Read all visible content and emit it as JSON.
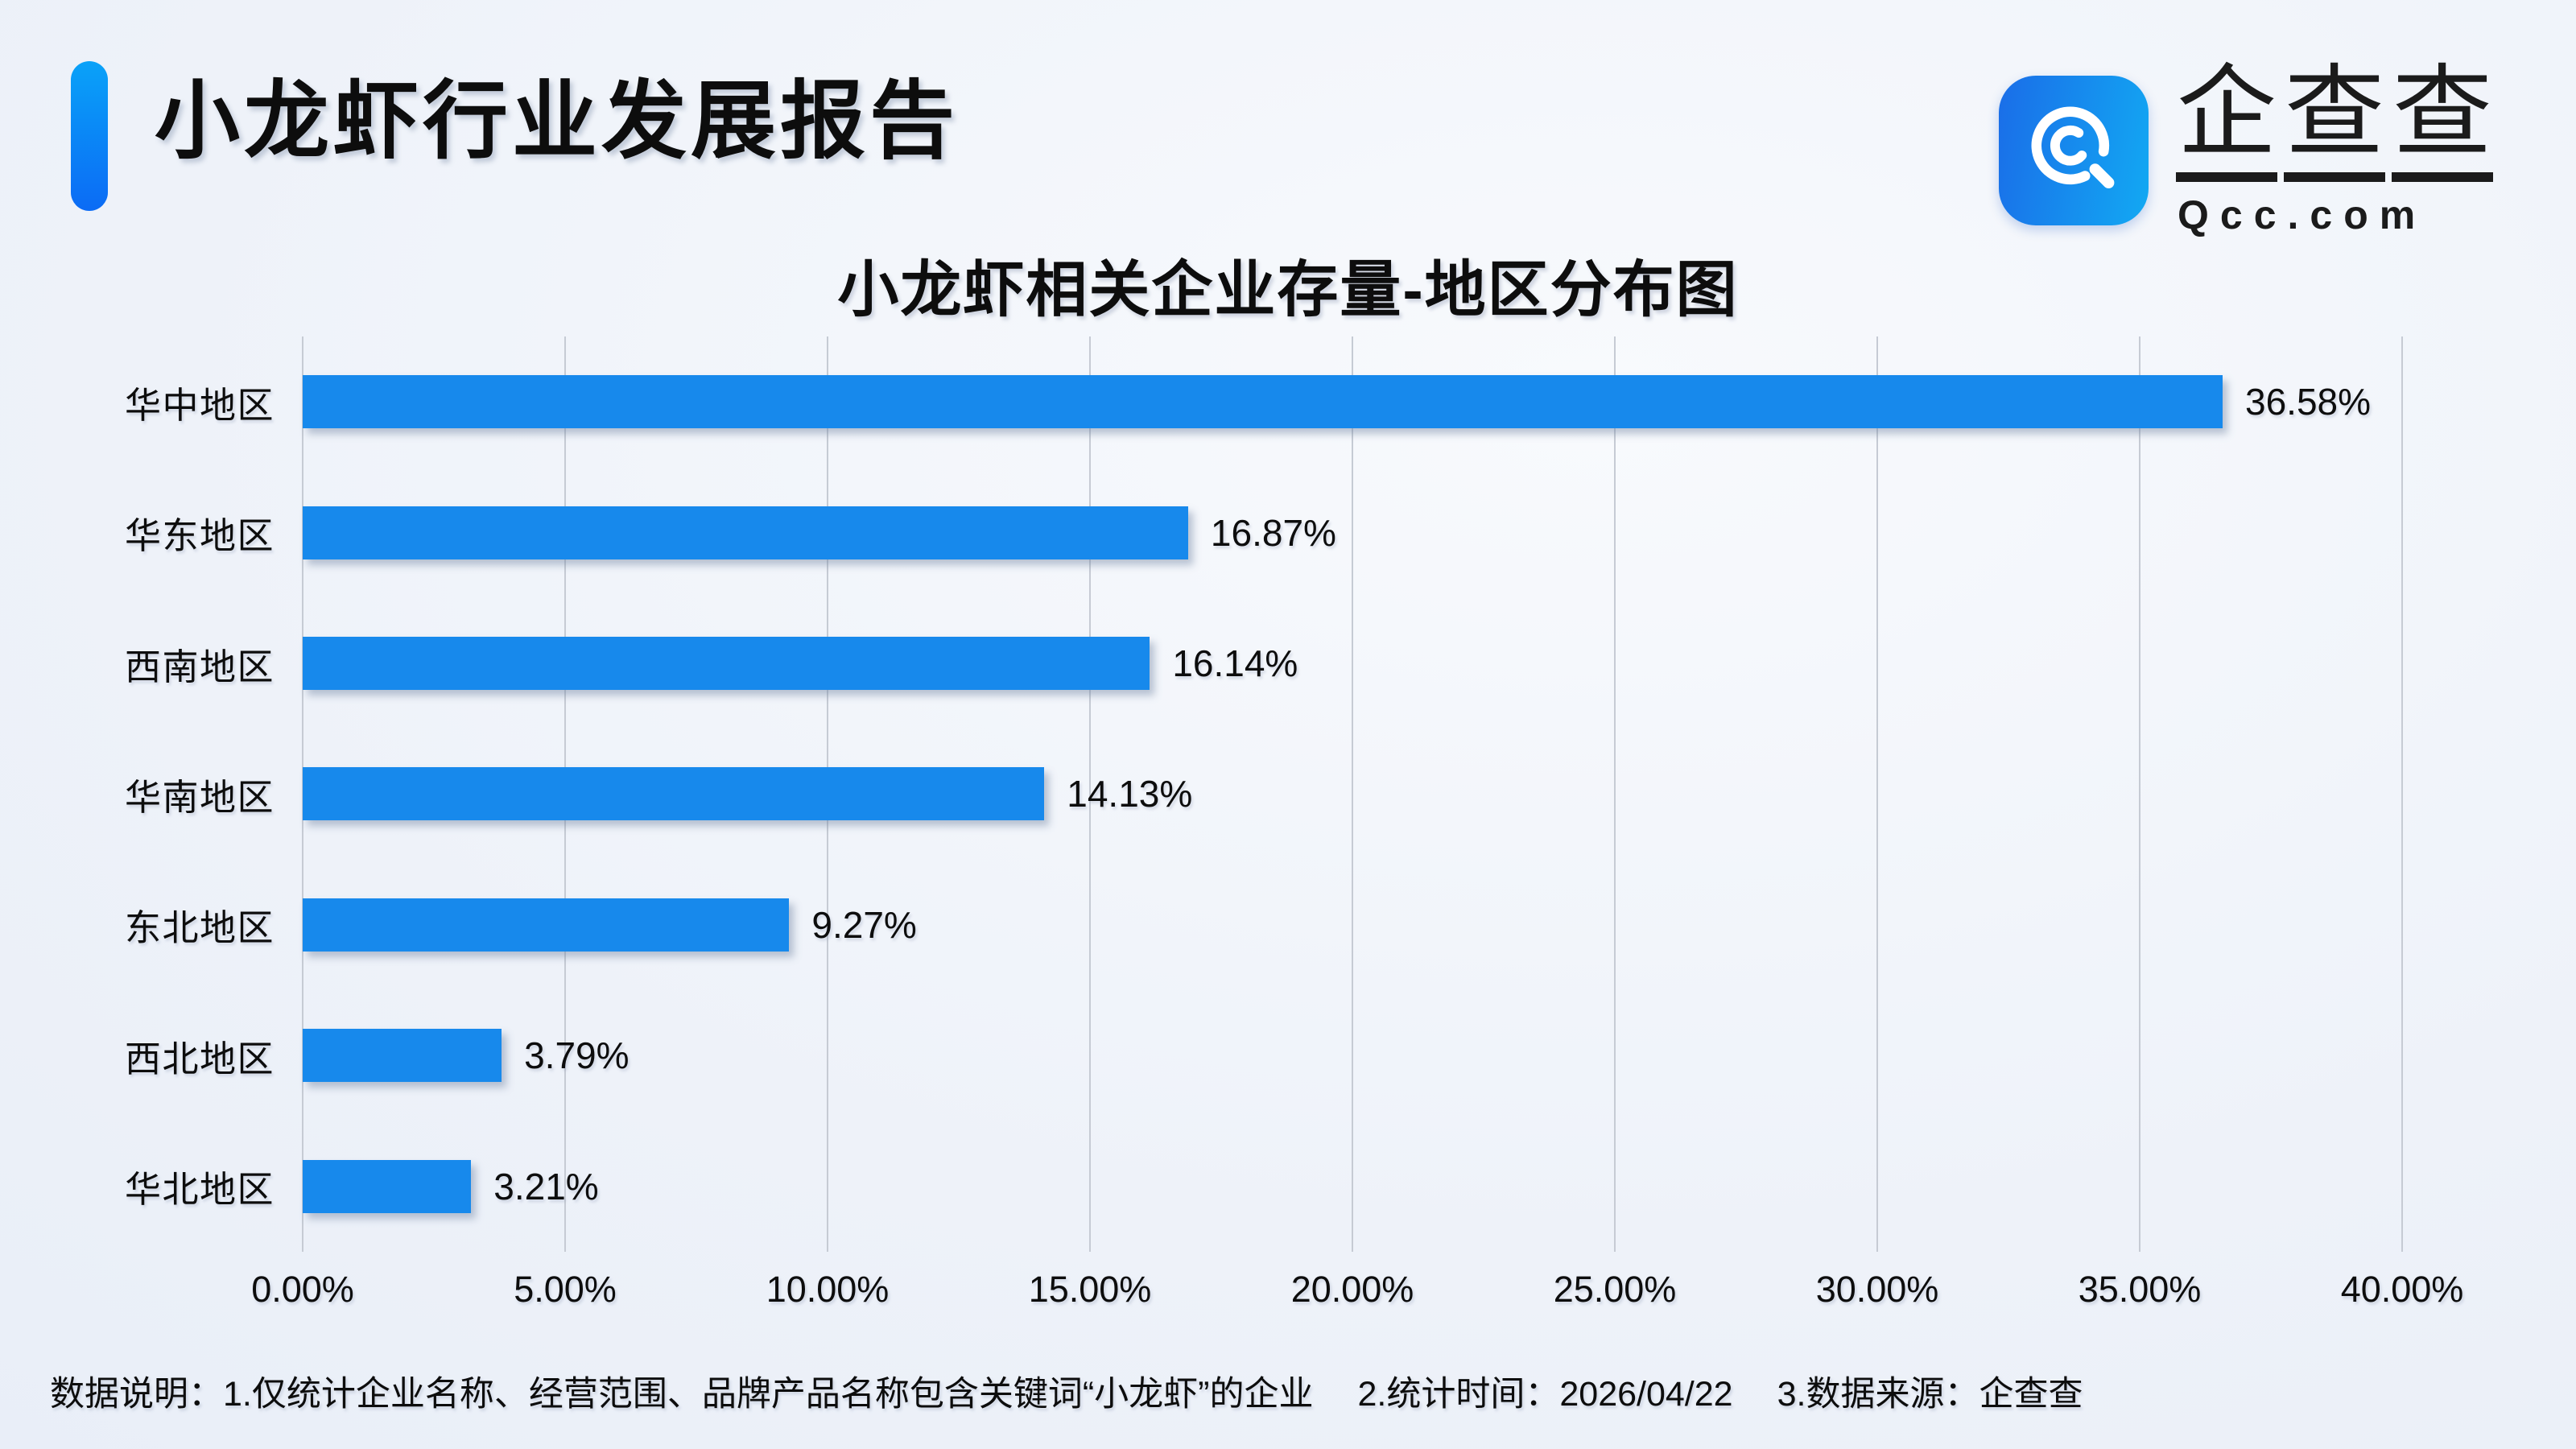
{
  "header": {
    "title": "小龙虾行业发展报告"
  },
  "logo": {
    "brand_chars": [
      "企",
      "查",
      "查"
    ],
    "domain": "Qcc.com",
    "icon": "qcc-magnifier-logo",
    "box_gradient": [
      "#1A6DE8",
      "#12A9F3"
    ]
  },
  "chart_data": {
    "type": "bar",
    "orientation": "horizontal",
    "title": "小龙虾相关企业存量-地区分布图",
    "categories": [
      "华中地区",
      "华东地区",
      "西南地区",
      "华南地区",
      "东北地区",
      "西北地区",
      "华北地区"
    ],
    "values": [
      36.58,
      16.87,
      16.14,
      14.13,
      9.27,
      3.79,
      3.21
    ],
    "value_labels": [
      "36.58%",
      "16.87%",
      "16.14%",
      "14.13%",
      "9.27%",
      "3.79%",
      "3.21%"
    ],
    "x_ticks": [
      "0.00%",
      "5.00%",
      "10.00%",
      "15.00%",
      "20.00%",
      "25.00%",
      "30.00%",
      "35.00%",
      "40.00%"
    ],
    "xlim": [
      0,
      40
    ],
    "grid": true,
    "legend_position": "none",
    "bar_color": "#1789EC",
    "gridline_color": "#C6CBD4"
  },
  "footer": {
    "prefix": "数据说明：",
    "notes": [
      "1.仅统计企业名称、经营范围、品牌产品名称包含关键词“小龙虾”的企业",
      "2.统计时间：2026/04/22",
      "3.数据来源：企查查"
    ]
  },
  "colors": {
    "accent_gradient_top": "#0AA2F8",
    "accent_gradient_bottom": "#0B6BF5",
    "background_edge": "#E3EAF6",
    "background_center": "#F8FAFD",
    "text": "#0D0D0D"
  }
}
